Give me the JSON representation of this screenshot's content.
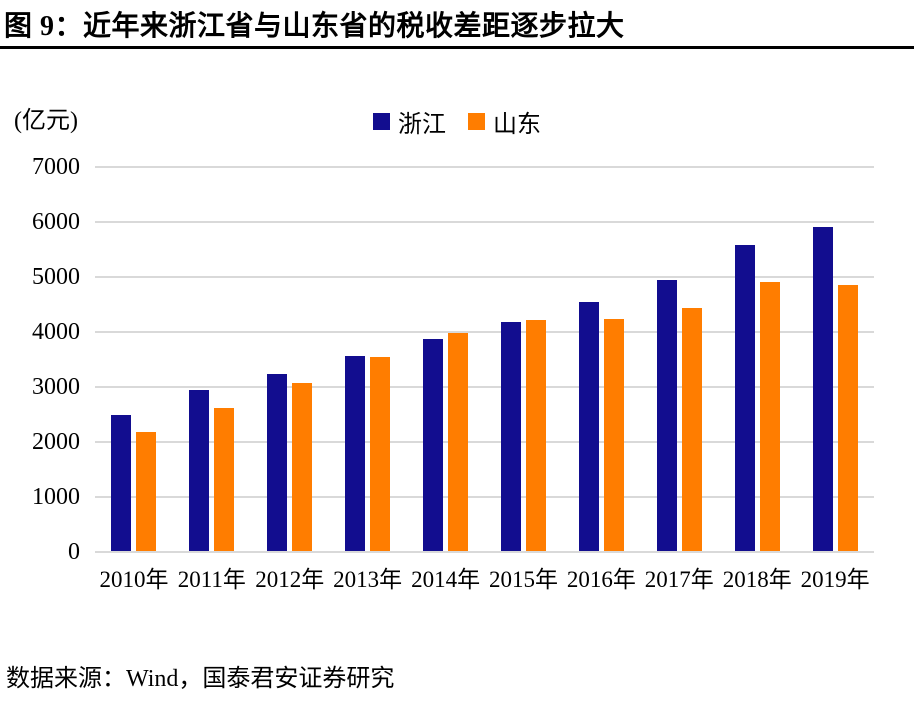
{
  "header": {
    "figure_label": "图 9：",
    "title": "近年来浙江省与山东省的税收差距逐步拉大"
  },
  "unit_label": "(亿元)",
  "footer": {
    "source": "数据来源：Wind，国泰君安证券研究"
  },
  "colors": {
    "zhejiang": "#120d8f",
    "shandong": "#ff7d00",
    "gridline": "#d9d9d9"
  },
  "chart_data": {
    "type": "bar",
    "title": "近年来浙江省与山东省的税收差距逐步拉大",
    "categories": [
      "2010年",
      "2011年",
      "2012年",
      "2013年",
      "2014年",
      "2015年",
      "2016年",
      "2017年",
      "2018年",
      "2019年"
    ],
    "series": [
      {
        "name": "浙江",
        "color": "#120d8f",
        "values": [
          2480,
          2930,
          3220,
          3550,
          3860,
          4160,
          4530,
          4930,
          5570,
          5890
        ]
      },
      {
        "name": "山东",
        "color": "#ff7d00",
        "values": [
          2160,
          2600,
          3050,
          3520,
          3970,
          4200,
          4220,
          4410,
          4890,
          4830
        ]
      }
    ],
    "xlabel": "",
    "ylabel": "(亿元)",
    "ylim": [
      0,
      7000
    ],
    "ytick_step": 1000,
    "yticks": [
      0,
      1000,
      2000,
      3000,
      4000,
      5000,
      6000,
      7000
    ],
    "grid": true,
    "legend_position": "top-center"
  }
}
